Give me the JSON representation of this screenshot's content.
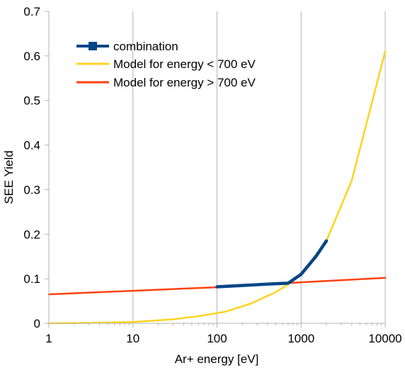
{
  "chart_data": {
    "type": "line",
    "title": "",
    "xlabel": "Ar+ energy [eV]",
    "ylabel": "SEE Yield",
    "xscale": "log",
    "xlim": [
      1,
      10000
    ],
    "ylim": [
      0,
      0.7
    ],
    "xticks": [
      1,
      10,
      100,
      1000,
      10000
    ],
    "xtick_labels": [
      "1",
      "10",
      "100",
      "1000",
      "10000"
    ],
    "yticks": [
      0,
      0.1,
      0.2,
      0.3,
      0.4,
      0.5,
      0.6,
      0.7
    ],
    "ytick_labels": [
      "0",
      "0.1",
      "0.2",
      "0.3",
      "0.4",
      "0.5",
      "0.6",
      "0.7"
    ],
    "grid": "vertical",
    "legend_position": "top-left",
    "series": [
      {
        "name": "combination",
        "color": "#004586",
        "marker": "square",
        "x": [
          100,
          200,
          400,
          700,
          1000,
          1500,
          2000
        ],
        "y": [
          0.082,
          0.085,
          0.088,
          0.09,
          0.11,
          0.15,
          0.185
        ]
      },
      {
        "name": "Model for energy < 700 eV",
        "color": "#ffd320",
        "marker": "none",
        "x": [
          1,
          3,
          10,
          30,
          60,
          125,
          250,
          500,
          750,
          1000,
          2000,
          4000,
          10000
        ],
        "y": [
          0.0,
          0.001,
          0.003,
          0.009,
          0.016,
          0.026,
          0.044,
          0.07,
          0.091,
          0.11,
          0.185,
          0.32,
          0.61
        ]
      },
      {
        "name": "Model for energy > 700 eV",
        "color": "#ff420e",
        "marker": "none",
        "x": [
          1,
          10,
          100,
          1000,
          10000
        ],
        "y": [
          0.065,
          0.073,
          0.081,
          0.092,
          0.102
        ]
      }
    ]
  }
}
